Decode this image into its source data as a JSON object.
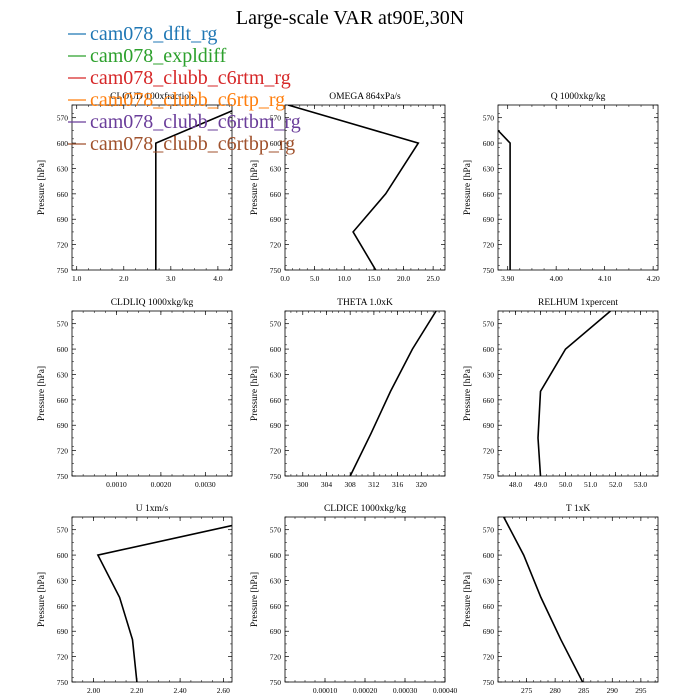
{
  "figure": {
    "title": "Large-scale VAR at90E,30N"
  },
  "legend": [
    {
      "label": "cam078_dflt_rg",
      "color": "#1f77b4"
    },
    {
      "label": "cam078_expldiff",
      "color": "#2ca02c"
    },
    {
      "label": "cam078_clubb_c6rtm_rg",
      "color": "#d62728"
    },
    {
      "label": "cam078_clubb_c6rtp_rg",
      "color": "#ff7f0e"
    },
    {
      "label": "cam078_clubb_c6rtbm_rg",
      "color": "#6a3d9a"
    },
    {
      "label": "cam078_clubb_c6rtbp_rg",
      "color": "#a0522d"
    }
  ],
  "chart_data": [
    {
      "type": "line",
      "title": "CLOUD 100xfraction",
      "ylabel": "Pressure [hPa]",
      "ylim": [
        750,
        555
      ],
      "yticks": [
        "570",
        "600",
        "630",
        "660",
        "690",
        "720",
        "750"
      ],
      "xlim": [
        0.9,
        4.3
      ],
      "xticks": [
        "1.0",
        "2.0",
        "3.0",
        "4.0"
      ],
      "x": [
        4.3,
        2.68,
        2.68,
        2.68
      ],
      "y": [
        562,
        600,
        700,
        750
      ]
    },
    {
      "type": "line",
      "title": "OMEGA 864xPa/s",
      "ylabel": "Pressure [hPa]",
      "ylim": [
        750,
        555
      ],
      "yticks": [
        "570",
        "600",
        "630",
        "660",
        "690",
        "720",
        "750"
      ],
      "xlim": [
        0,
        27
      ],
      "xticks": [
        "0.0",
        "5.0",
        "10.0",
        "15.0",
        "20.0",
        "25.0"
      ],
      "x": [
        0.5,
        22.5,
        17.0,
        11.5,
        15.3
      ],
      "y": [
        555,
        600,
        660,
        705,
        750
      ]
    },
    {
      "type": "line",
      "title": "Q 1000xkg/kg",
      "ylabel": "Pressure [hPa]",
      "ylim": [
        750,
        555
      ],
      "yticks": [
        "570",
        "600",
        "630",
        "660",
        "690",
        "720",
        "750"
      ],
      "xlim": [
        3.88,
        4.21
      ],
      "xticks": [
        "3.90",
        "4.00",
        "4.10",
        "4.20"
      ],
      "x": [
        3.88,
        3.905,
        3.905,
        3.905
      ],
      "y": [
        585,
        600,
        700,
        750
      ]
    },
    {
      "type": "line",
      "title": "CLDLIQ 1000xkg/kg",
      "ylabel": "Pressure [hPa]",
      "ylim": [
        750,
        555
      ],
      "yticks": [
        "570",
        "600",
        "630",
        "660",
        "690",
        "720",
        "750"
      ],
      "xlim": [
        0.0,
        0.0036
      ],
      "xticks": [
        "0.0010",
        "0.0020",
        "0.0030"
      ],
      "x": [],
      "y": []
    },
    {
      "type": "line",
      "title": "THETA 1.0xK",
      "ylabel": "Pressure [hPa]",
      "ylim": [
        750,
        555
      ],
      "yticks": [
        "570",
        "600",
        "630",
        "660",
        "690",
        "720",
        "750"
      ],
      "xlim": [
        297,
        324
      ],
      "xticks": [
        "300",
        "304",
        "308",
        "312",
        "316",
        "320"
      ],
      "x": [
        322.5,
        318.5,
        314.8,
        311.5,
        308.0
      ],
      "y": [
        555,
        600,
        650,
        700,
        750
      ]
    },
    {
      "type": "line",
      "title": "RELHUM 1xpercent",
      "ylabel": "Pressure [hPa]",
      "ylim": [
        750,
        555
      ],
      "yticks": [
        "570",
        "600",
        "630",
        "660",
        "690",
        "720",
        "750"
      ],
      "xlim": [
        47.3,
        53.7
      ],
      "xticks": [
        "48.0",
        "49.0",
        "50.0",
        "51.0",
        "52.0",
        "53.0"
      ],
      "x": [
        51.8,
        50.0,
        49.0,
        48.9,
        49.0
      ],
      "y": [
        555,
        600,
        650,
        705,
        750
      ]
    },
    {
      "type": "line",
      "title": "U 1xm/s",
      "ylabel": "Pressure [hPa]",
      "ylim": [
        750,
        555
      ],
      "yticks": [
        "570",
        "600",
        "630",
        "660",
        "690",
        "720",
        "750"
      ],
      "xlim": [
        1.9,
        2.64
      ],
      "xticks": [
        "2.00",
        "2.20",
        "2.40",
        "2.60"
      ],
      "x": [
        2.64,
        2.02,
        2.12,
        2.18,
        2.2
      ],
      "y": [
        565,
        600,
        650,
        700,
        750
      ]
    },
    {
      "type": "line",
      "title": "CLDICE 1000xkg/kg",
      "ylabel": "Pressure [hPa]",
      "ylim": [
        750,
        555
      ],
      "yticks": [
        "570",
        "600",
        "630",
        "660",
        "690",
        "720",
        "750"
      ],
      "xlim": [
        0.0,
        0.0004
      ],
      "xticks": [
        "0.00010",
        "0.00020",
        "0.00030",
        "0.00040"
      ],
      "x": [],
      "y": []
    },
    {
      "type": "line",
      "title": "T 1xK",
      "ylabel": "Pressure [hPa]",
      "ylim": [
        750,
        555
      ],
      "yticks": [
        "570",
        "600",
        "630",
        "660",
        "690",
        "720",
        "750"
      ],
      "xlim": [
        270,
        298
      ],
      "xticks": [
        "275",
        "280",
        "285",
        "290",
        "295"
      ],
      "x": [
        271.0,
        274.5,
        277.5,
        281.0,
        284.8
      ],
      "y": [
        555,
        600,
        650,
        700,
        750
      ]
    }
  ]
}
